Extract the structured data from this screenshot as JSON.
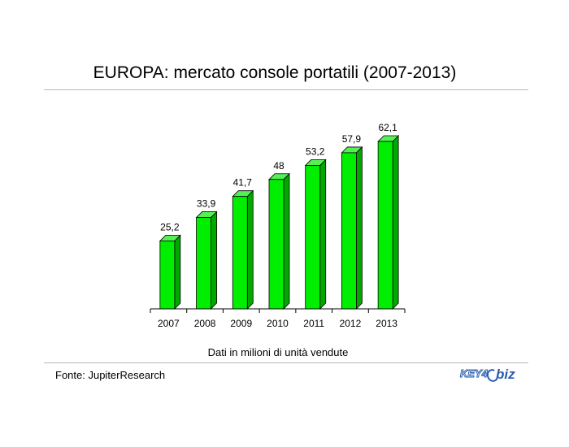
{
  "header": {
    "title": "EUROPA: mercato console portatili (2007-2013)"
  },
  "footer": {
    "caption": "Dati in milioni di unità vendute",
    "source": "Fonte: JupiterResearch",
    "logo_left": "KEY4",
    "logo_right": "biz"
  },
  "chart_data": {
    "type": "bar",
    "title": "EUROPA: mercato console portatili (2007-2013)",
    "xlabel": "Dati in milioni di unità vendute",
    "ylabel": "",
    "categories": [
      "2007",
      "2008",
      "2009",
      "2010",
      "2011",
      "2012",
      "2013"
    ],
    "values": [
      25.2,
      33.9,
      41.7,
      48,
      53.2,
      57.9,
      62.1
    ],
    "value_labels": [
      "25,2",
      "33,9",
      "41,7",
      "48",
      "53,2",
      "57,9",
      "62,1"
    ],
    "ylim": [
      0,
      70
    ],
    "grid": false,
    "legend": "none",
    "colors": {
      "bar_front": "#00ee00",
      "bar_side": "#00a800",
      "bar_top": "#55f055",
      "outline": "#000000"
    }
  }
}
